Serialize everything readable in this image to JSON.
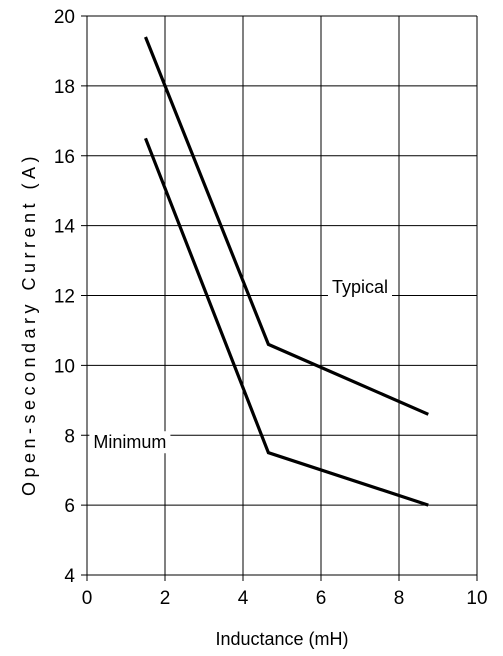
{
  "chart_data": {
    "type": "line",
    "xlabel": "Inductance (mH)",
    "ylabel": "Open-secondary Current (A)",
    "xlim": [
      0,
      10
    ],
    "ylim": [
      4,
      20
    ],
    "xticks": [
      0,
      2,
      4,
      6,
      8,
      10
    ],
    "yticks": [
      4,
      6,
      8,
      10,
      12,
      14,
      16,
      18,
      20
    ],
    "grid": true,
    "series": [
      {
        "name": "Typical",
        "x": [
          1.5,
          4.65,
          8.75
        ],
        "y": [
          19.4,
          10.6,
          8.6
        ]
      },
      {
        "name": "Minimum",
        "x": [
          1.5,
          4.65,
          8.75
        ],
        "y": [
          16.5,
          7.5,
          6.0
        ]
      }
    ],
    "line_color": "#000000",
    "grid_color": "#000000"
  }
}
